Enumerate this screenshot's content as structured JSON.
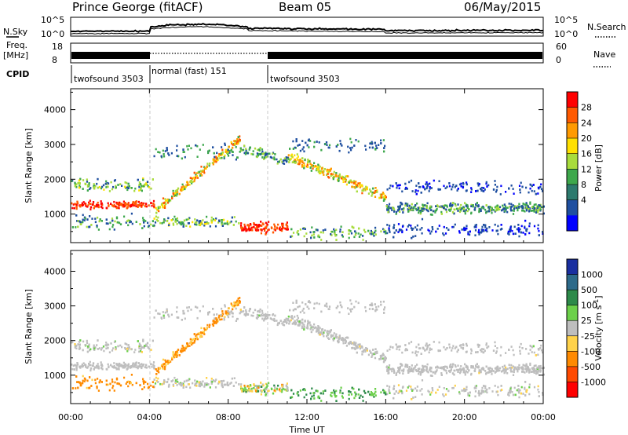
{
  "header": {
    "station": "Prince George (fitACF)",
    "beam": "Beam 05",
    "date": "06/May/2015"
  },
  "top_panels": {
    "nsky_label": "N.Sky",
    "nsearch_label": "N.Search",
    "freq_label": "Freq.",
    "freq_unit": "[MHz]",
    "nave_label": "Nave",
    "cpid_label": "CPID",
    "nsky_ticks": [
      "10^5",
      "10^0"
    ],
    "freq_ticks": [
      "18",
      "8"
    ],
    "nave_ticks": [
      "60",
      "0"
    ]
  },
  "cpid_segments": [
    {
      "label": "twofsound 3503",
      "start_hour": 0,
      "end_hour": 4
    },
    {
      "label": "normal (fast) 151",
      "start_hour": 4,
      "end_hour": 10
    },
    {
      "label": "twofsound 3503",
      "start_hour": 10,
      "end_hour": 24
    }
  ],
  "power_colorbar": {
    "title": "Power [dB]",
    "ticks": [
      "28",
      "24",
      "20",
      "16",
      "12",
      "8",
      "4"
    ],
    "colors": [
      "#ff0000",
      "#ff5a00",
      "#ff9a00",
      "#ffe000",
      "#a8dc3c",
      "#3ea84c",
      "#2d7a6e",
      "#1f4fa0",
      "#0000ff"
    ]
  },
  "velocity_colorbar": {
    "title": "Velocity [m s",
    "title_sup": "-1",
    "title_end": "]",
    "ticks": [
      "1000",
      "500",
      "100",
      "25",
      "-25",
      "-100",
      "-500",
      "-1000"
    ],
    "colors": [
      "#1a2fa0",
      "#2d6a8a",
      "#2d8a4a",
      "#6cd04a",
      "#bebebe",
      "#ffd24a",
      "#ff8a00",
      "#ff4a00",
      "#ff0000"
    ]
  },
  "chart_data": [
    {
      "type": "heatmap",
      "title": "Power",
      "xlabel": "Time UT",
      "ylabel": "Slant Range [km]",
      "xlim": [
        0,
        24
      ],
      "ylim": [
        180,
        4600
      ],
      "x_tick_labels": [
        "00:00",
        "04:00",
        "08:00",
        "12:00",
        "16:00",
        "20:00",
        "00:00"
      ],
      "y_tick_labels": [
        "1000",
        "2000",
        "3000",
        "4000"
      ],
      "grid": false,
      "echo_bands_km": [
        {
          "from_hour": 0,
          "to_hour": 4,
          "range_km": 1300,
          "power_db": 30
        },
        {
          "from_hour": 0,
          "to_hour": 4,
          "range_km": 1850,
          "power_db": 12
        },
        {
          "from_hour": 5,
          "to_hour": 8.5,
          "range_km": 2300,
          "power_db": 18
        },
        {
          "from_hour": 8.5,
          "to_hour": 11,
          "range_km": 700,
          "power_db": 30
        },
        {
          "from_hour": 12,
          "to_hour": 16,
          "range_km": 2200,
          "power_db": 18
        },
        {
          "from_hour": 16,
          "to_hour": 24,
          "range_km": 1200,
          "power_db": 10
        }
      ]
    },
    {
      "type": "heatmap",
      "title": "Velocity",
      "xlabel": "Time UT",
      "ylabel": "Slant Range [km]",
      "xlim": [
        0,
        24
      ],
      "ylim": [
        180,
        4600
      ],
      "x_tick_labels": [
        "00:00",
        "04:00",
        "08:00",
        "12:00",
        "16:00",
        "20:00",
        "00:00"
      ],
      "y_tick_labels": [
        "1000",
        "2000",
        "3000",
        "4000"
      ],
      "grid": false,
      "echo_bands_km": [
        {
          "from_hour": 0,
          "to_hour": 4,
          "range_km": 1300,
          "velocity_ms": 0
        },
        {
          "from_hour": 2,
          "to_hour": 4,
          "range_km": 700,
          "velocity_ms": -300
        },
        {
          "from_hour": 6,
          "to_hour": 8,
          "range_km": 2400,
          "velocity_ms": -150
        },
        {
          "from_hour": 10,
          "to_hour": 16,
          "range_km": 2500,
          "velocity_ms": 0
        },
        {
          "from_hour": 16,
          "to_hour": 24,
          "range_km": 1200,
          "velocity_ms": 0
        }
      ]
    }
  ]
}
